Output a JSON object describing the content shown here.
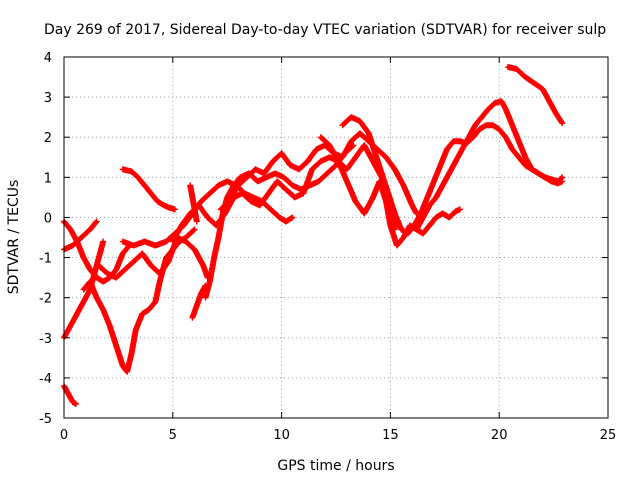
{
  "chart_data": {
    "type": "scatter",
    "title": "Day 269 of 2017, Sidereal Day-to-day VTEC variation (SDTVAR) for receiver sulp",
    "xlabel": "GPS time / hours",
    "ylabel": "SDTVAR / TECUs",
    "xlim": [
      0,
      25
    ],
    "ylim": [
      -5,
      4
    ],
    "xticks": [
      "0",
      "5",
      "10",
      "15",
      "20",
      "25"
    ],
    "yticks": [
      "-5",
      "-4",
      "-3",
      "-2",
      "-1",
      "0",
      "1",
      "2",
      "3",
      "4"
    ],
    "grid": true,
    "marker": "plus",
    "color": "#ff0000",
    "series": [
      {
        "values": [
          [
            0.0,
            -0.1
          ],
          [
            0.3,
            -0.3
          ],
          [
            0.6,
            -0.6
          ],
          [
            0.9,
            -1.0
          ],
          [
            1.2,
            -1.3
          ],
          [
            1.5,
            -1.5
          ],
          [
            1.8,
            -1.6
          ],
          [
            2.1,
            -1.5
          ],
          [
            2.4,
            -1.3
          ],
          [
            2.7,
            -0.9
          ],
          [
            3.0,
            -0.7
          ]
        ]
      },
      {
        "values": [
          [
            0.0,
            -0.8
          ],
          [
            0.4,
            -0.7
          ],
          [
            0.8,
            -0.5
          ],
          [
            1.2,
            -0.3
          ],
          [
            1.5,
            -0.1
          ]
        ]
      },
      {
        "values": [
          [
            0.0,
            -3.0
          ],
          [
            0.3,
            -2.7
          ],
          [
            0.6,
            -2.4
          ],
          [
            0.9,
            -2.1
          ],
          [
            1.2,
            -1.8
          ],
          [
            1.5,
            -1.2
          ],
          [
            1.8,
            -0.6
          ]
        ]
      },
      {
        "values": [
          [
            0.0,
            -4.2
          ],
          [
            0.2,
            -4.4
          ],
          [
            0.4,
            -4.6
          ],
          [
            0.55,
            -4.65
          ]
        ]
      },
      {
        "values": [
          [
            0.9,
            -1.8
          ],
          [
            1.2,
            -1.6
          ],
          [
            1.5,
            -2.0
          ],
          [
            1.8,
            -2.3
          ],
          [
            2.1,
            -2.7
          ],
          [
            2.4,
            -3.2
          ],
          [
            2.7,
            -3.7
          ],
          [
            2.9,
            -3.85
          ],
          [
            3.1,
            -3.4
          ],
          [
            3.3,
            -2.8
          ],
          [
            3.6,
            -2.4
          ],
          [
            3.9,
            -2.3
          ],
          [
            4.2,
            -2.1
          ],
          [
            4.4,
            -1.6
          ],
          [
            4.7,
            -1.0
          ],
          [
            5.0,
            -0.8
          ],
          [
            5.3,
            -0.6
          ],
          [
            5.6,
            -0.5
          ],
          [
            6.0,
            -0.3
          ]
        ]
      },
      {
        "values": [
          [
            1.6,
            -1.2
          ],
          [
            2.0,
            -1.4
          ],
          [
            2.4,
            -1.5
          ],
          [
            2.8,
            -1.3
          ],
          [
            3.2,
            -1.1
          ],
          [
            3.6,
            -0.9
          ],
          [
            4.0,
            -1.2
          ],
          [
            4.4,
            -1.4
          ],
          [
            4.8,
            -1.1
          ],
          [
            5.2,
            -0.5
          ],
          [
            5.6,
            -0.6
          ],
          [
            6.0,
            -0.8
          ],
          [
            6.4,
            -1.2
          ],
          [
            6.6,
            -1.5
          ]
        ]
      },
      {
        "values": [
          [
            2.7,
            -0.6
          ],
          [
            3.2,
            -0.7
          ],
          [
            3.7,
            -0.6
          ],
          [
            4.2,
            -0.7
          ],
          [
            4.7,
            -0.6
          ],
          [
            5.1,
            -0.4
          ],
          [
            5.5,
            -0.2
          ],
          [
            5.9,
            0.1
          ],
          [
            6.3,
            0.4
          ],
          [
            6.7,
            0.6
          ],
          [
            7.1,
            0.8
          ],
          [
            7.5,
            0.9
          ],
          [
            7.9,
            0.8
          ],
          [
            8.3,
            0.6
          ],
          [
            8.7,
            0.5
          ],
          [
            9.1,
            0.4
          ],
          [
            9.5,
            0.2
          ],
          [
            9.9,
            0.0
          ],
          [
            10.2,
            -0.1
          ],
          [
            10.5,
            0.0
          ]
        ]
      },
      {
        "values": [
          [
            2.7,
            1.2
          ],
          [
            3.1,
            1.15
          ],
          [
            3.4,
            1.0
          ],
          [
            3.7,
            0.8
          ],
          [
            4.0,
            0.6
          ],
          [
            4.3,
            0.4
          ],
          [
            4.6,
            0.3
          ],
          [
            4.8,
            0.25
          ],
          [
            5.1,
            0.2
          ]
        ]
      },
      {
        "values": [
          [
            5.8,
            0.8
          ],
          [
            5.9,
            0.5
          ],
          [
            6.0,
            0.2
          ],
          [
            6.1,
            -0.1
          ]
        ]
      },
      {
        "values": [
          [
            5.9,
            -2.5
          ],
          [
            6.1,
            -2.2
          ],
          [
            6.3,
            -1.9
          ],
          [
            6.5,
            -1.7
          ]
        ]
      },
      {
        "values": [
          [
            6.5,
            -2.0
          ],
          [
            6.7,
            -1.6
          ],
          [
            6.9,
            -1.0
          ],
          [
            7.1,
            -0.5
          ],
          [
            7.3,
            0.1
          ],
          [
            7.5,
            0.5
          ],
          [
            7.8,
            0.8
          ],
          [
            8.1,
            1.0
          ],
          [
            8.5,
            1.1
          ],
          [
            8.9,
            0.9
          ],
          [
            9.3,
            1.0
          ],
          [
            9.7,
            1.1
          ],
          [
            10.1,
            1.0
          ],
          [
            10.5,
            0.8
          ],
          [
            10.9,
            0.7
          ],
          [
            11.3,
            0.8
          ],
          [
            11.7,
            0.9
          ],
          [
            12.1,
            1.1
          ],
          [
            12.5,
            1.3
          ],
          [
            12.9,
            1.6
          ],
          [
            13.3,
            1.8
          ]
        ]
      },
      {
        "values": [
          [
            5.0,
            -0.6
          ],
          [
            5.4,
            -0.2
          ],
          [
            5.8,
            0.1
          ],
          [
            6.2,
            0.3
          ],
          [
            6.6,
            0.0
          ],
          [
            7.0,
            -0.2
          ],
          [
            7.4,
            0.1
          ],
          [
            7.8,
            0.5
          ],
          [
            8.2,
            0.6
          ],
          [
            8.6,
            0.4
          ],
          [
            9.0,
            0.3
          ],
          [
            9.4,
            0.6
          ],
          [
            9.8,
            0.9
          ],
          [
            10.2,
            0.7
          ],
          [
            10.6,
            0.5
          ],
          [
            11.0,
            0.6
          ],
          [
            11.4,
            1.2
          ],
          [
            11.8,
            1.4
          ],
          [
            12.2,
            1.5
          ],
          [
            12.6,
            1.4
          ],
          [
            13.0,
            1.2
          ],
          [
            13.4,
            1.5
          ],
          [
            13.8,
            1.8
          ],
          [
            14.2,
            1.4
          ],
          [
            14.6,
            1.0
          ],
          [
            15.0,
            0.4
          ],
          [
            15.2,
            -0.3
          ]
        ]
      },
      {
        "values": [
          [
            7.2,
            0.2
          ],
          [
            7.6,
            0.4
          ],
          [
            8.0,
            0.8
          ],
          [
            8.4,
            1.0
          ],
          [
            8.8,
            1.2
          ],
          [
            9.2,
            1.1
          ],
          [
            9.6,
            1.4
          ],
          [
            10.0,
            1.6
          ],
          [
            10.4,
            1.3
          ],
          [
            10.8,
            1.2
          ],
          [
            11.2,
            1.4
          ],
          [
            11.6,
            1.7
          ],
          [
            12.0,
            1.8
          ],
          [
            12.4,
            1.6
          ],
          [
            12.8,
            1.5
          ],
          [
            13.2,
            1.9
          ],
          [
            13.6,
            2.1
          ],
          [
            14.0,
            1.9
          ],
          [
            14.4,
            1.7
          ],
          [
            14.8,
            1.5
          ],
          [
            15.2,
            1.2
          ],
          [
            15.6,
            0.8
          ],
          [
            16.0,
            0.3
          ],
          [
            16.2,
            0.1
          ]
        ]
      },
      {
        "values": [
          [
            11.8,
            2.0
          ],
          [
            12.2,
            1.8
          ],
          [
            12.6,
            1.4
          ],
          [
            13.0,
            0.9
          ],
          [
            13.4,
            0.4
          ],
          [
            13.8,
            0.1
          ],
          [
            14.2,
            0.5
          ],
          [
            14.5,
            0.9
          ],
          [
            14.8,
            0.4
          ],
          [
            15.0,
            -0.2
          ],
          [
            15.3,
            -0.7
          ],
          [
            15.6,
            -0.5
          ],
          [
            15.9,
            -0.2
          ],
          [
            16.2,
            -0.3
          ],
          [
            16.5,
            -0.4
          ],
          [
            16.8,
            -0.2
          ],
          [
            17.1,
            0.0
          ],
          [
            17.4,
            0.1
          ],
          [
            17.7,
            0.0
          ],
          [
            18.0,
            0.15
          ],
          [
            18.2,
            0.2
          ]
        ]
      },
      {
        "values": [
          [
            12.8,
            2.3
          ],
          [
            13.2,
            2.5
          ],
          [
            13.6,
            2.4
          ],
          [
            14.0,
            2.1
          ],
          [
            14.3,
            1.6
          ],
          [
            14.6,
            1.1
          ],
          [
            14.9,
            0.6
          ],
          [
            15.2,
            0.1
          ],
          [
            15.5,
            -0.3
          ],
          [
            15.8,
            -0.4
          ],
          [
            16.1,
            -0.2
          ],
          [
            16.4,
            0.1
          ],
          [
            16.7,
            0.5
          ],
          [
            17.0,
            0.9
          ],
          [
            17.3,
            1.3
          ],
          [
            17.6,
            1.7
          ],
          [
            17.9,
            1.9
          ],
          [
            18.2,
            1.9
          ],
          [
            18.5,
            1.85
          ],
          [
            18.8,
            2.0
          ],
          [
            19.1,
            2.2
          ],
          [
            19.4,
            2.3
          ],
          [
            19.7,
            2.3
          ],
          [
            20.0,
            2.2
          ],
          [
            20.3,
            2.0
          ],
          [
            20.6,
            1.7
          ],
          [
            20.9,
            1.5
          ],
          [
            21.2,
            1.3
          ],
          [
            21.5,
            1.2
          ],
          [
            21.8,
            1.1
          ],
          [
            22.1,
            1.0
          ],
          [
            22.4,
            0.95
          ],
          [
            22.7,
            0.9
          ],
          [
            22.9,
            1.0
          ]
        ]
      },
      {
        "values": [
          [
            16.2,
            -0.3
          ],
          [
            16.5,
            0.0
          ],
          [
            16.8,
            0.3
          ],
          [
            17.1,
            0.5
          ],
          [
            17.4,
            0.8
          ],
          [
            17.7,
            1.1
          ],
          [
            18.0,
            1.4
          ],
          [
            18.3,
            1.7
          ],
          [
            18.6,
            2.0
          ],
          [
            18.9,
            2.3
          ],
          [
            19.2,
            2.5
          ],
          [
            19.5,
            2.7
          ],
          [
            19.8,
            2.85
          ],
          [
            20.1,
            2.9
          ],
          [
            20.3,
            2.7
          ],
          [
            20.6,
            2.3
          ],
          [
            20.9,
            1.9
          ],
          [
            21.2,
            1.5
          ],
          [
            21.5,
            1.2
          ],
          [
            21.8,
            1.1
          ],
          [
            22.1,
            1.0
          ],
          [
            22.4,
            0.9
          ],
          [
            22.7,
            0.85
          ],
          [
            22.9,
            0.9
          ]
        ]
      },
      {
        "values": [
          [
            20.4,
            3.75
          ],
          [
            20.8,
            3.7
          ],
          [
            21.2,
            3.5
          ],
          [
            21.6,
            3.35
          ],
          [
            22.0,
            3.2
          ],
          [
            22.3,
            2.9
          ],
          [
            22.6,
            2.6
          ],
          [
            22.9,
            2.35
          ]
        ]
      }
    ]
  }
}
